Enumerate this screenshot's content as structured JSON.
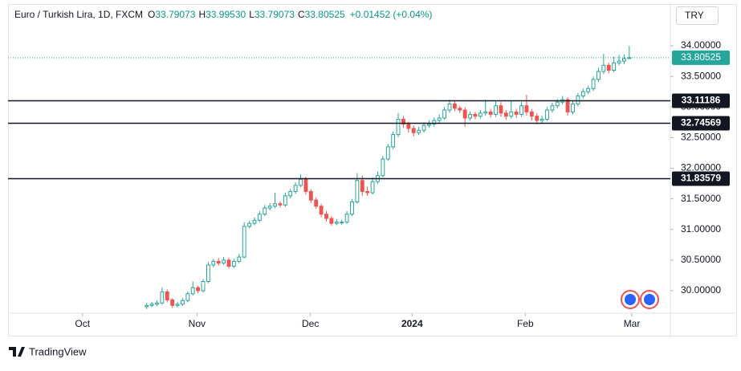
{
  "header": {
    "symbol": "Euro / Turkish Lira, 1D, FXCM",
    "o_label": "O",
    "o": "33.79073",
    "h_label": "H",
    "h": "33.99530",
    "l_label": "L",
    "l": "33.79073",
    "c_label": "C",
    "c": "33.80525",
    "change": "+0.01452 (+0.04%)",
    "currency": "TRY",
    "brand": "TradingView"
  },
  "chart_data": {
    "type": "candlestick",
    "up_color": "#26a69a",
    "down_color": "#ef5350",
    "xlim": [
      -27,
      102
    ],
    "ylim": [
      29.633,
      34.616
    ],
    "xticks": [
      {
        "value": -12.5,
        "label": "Oct"
      },
      {
        "value": 9.8,
        "label": "Nov"
      },
      {
        "value": 31.9,
        "label": "Dec"
      },
      {
        "value": 51.7,
        "label": "2024"
      },
      {
        "value": 73.75,
        "label": "Feb"
      },
      {
        "value": 94.5,
        "label": "Mar"
      }
    ],
    "yticks": [
      {
        "value": 30,
        "label": "30.00000"
      },
      {
        "value": 30.5,
        "label": "30.50000"
      },
      {
        "value": 31,
        "label": "31.00000"
      },
      {
        "value": 31.5,
        "label": "31.50000"
      },
      {
        "value": 32,
        "label": "32.00000"
      },
      {
        "value": 32.5,
        "label": "32.50000"
      },
      {
        "value": 33,
        "label": "33.00000"
      },
      {
        "value": 33.5,
        "label": "33.50000"
      },
      {
        "value": 34,
        "label": "34.00000"
      }
    ],
    "levels": [
      {
        "value": 33.11186,
        "label": "33.11186"
      },
      {
        "value": 32.74569,
        "label": "32.74569"
      },
      {
        "value": 31.83579,
        "label": "31.83579"
      }
    ],
    "last_price": {
      "value": 33.80525,
      "label": "33.80525"
    },
    "candles": [
      [
        29.74,
        29.8,
        29.7,
        29.76
      ],
      [
        29.76,
        29.82,
        29.73,
        29.78
      ],
      [
        29.78,
        29.84,
        29.75,
        29.8
      ],
      [
        29.8,
        30.05,
        29.77,
        29.98
      ],
      [
        29.98,
        30.02,
        29.81,
        29.85
      ],
      [
        29.85,
        29.88,
        29.72,
        29.76
      ],
      [
        29.76,
        29.82,
        29.73,
        29.78
      ],
      [
        29.78,
        29.88,
        29.75,
        29.84
      ],
      [
        29.84,
        29.99,
        29.81,
        29.95
      ],
      [
        29.95,
        30.15,
        29.92,
        30.05
      ],
      [
        30.05,
        30.08,
        29.96,
        30.0
      ],
      [
        30.0,
        30.19,
        29.97,
        30.15
      ],
      [
        30.15,
        30.47,
        30.12,
        30.42
      ],
      [
        30.42,
        30.52,
        30.38,
        30.48
      ],
      [
        30.48,
        30.53,
        30.41,
        30.45
      ],
      [
        30.45,
        30.55,
        30.42,
        30.5
      ],
      [
        30.5,
        30.54,
        30.36,
        30.4
      ],
      [
        30.4,
        30.52,
        30.37,
        30.48
      ],
      [
        30.48,
        30.6,
        30.45,
        30.55
      ],
      [
        30.55,
        31.12,
        30.53,
        31.05
      ],
      [
        31.05,
        31.14,
        31.02,
        31.1
      ],
      [
        31.1,
        31.2,
        31.07,
        31.15
      ],
      [
        31.15,
        31.3,
        31.12,
        31.25
      ],
      [
        31.25,
        31.4,
        31.22,
        31.35
      ],
      [
        31.35,
        31.43,
        31.31,
        31.38
      ],
      [
        31.38,
        31.6,
        31.35,
        31.42
      ],
      [
        31.42,
        31.46,
        31.36,
        31.4
      ],
      [
        31.4,
        31.6,
        31.37,
        31.55
      ],
      [
        31.55,
        31.66,
        31.51,
        31.62
      ],
      [
        31.62,
        31.77,
        31.58,
        31.72
      ],
      [
        31.72,
        31.9,
        31.69,
        31.82
      ],
      [
        31.82,
        31.86,
        31.57,
        31.62
      ],
      [
        31.62,
        31.66,
        31.43,
        31.48
      ],
      [
        31.48,
        31.52,
        31.34,
        31.38
      ],
      [
        31.38,
        31.42,
        31.2,
        31.25
      ],
      [
        31.25,
        31.3,
        31.13,
        31.18
      ],
      [
        31.18,
        31.22,
        31.06,
        31.1
      ],
      [
        31.1,
        31.17,
        31.07,
        31.12
      ],
      [
        31.12,
        31.16,
        31.08,
        31.12
      ],
      [
        31.12,
        31.3,
        31.09,
        31.25
      ],
      [
        31.25,
        31.5,
        31.22,
        31.45
      ],
      [
        31.45,
        31.92,
        31.42,
        31.8
      ],
      [
        31.8,
        31.88,
        31.55,
        31.62
      ],
      [
        31.62,
        31.7,
        31.55,
        31.6
      ],
      [
        31.6,
        31.85,
        31.57,
        31.78
      ],
      [
        31.78,
        31.95,
        31.74,
        31.88
      ],
      [
        31.88,
        32.2,
        31.85,
        32.15
      ],
      [
        32.15,
        32.4,
        32.12,
        32.35
      ],
      [
        32.35,
        32.6,
        32.31,
        32.55
      ],
      [
        32.55,
        32.9,
        32.51,
        32.8
      ],
      [
        32.8,
        32.85,
        32.66,
        32.72
      ],
      [
        32.72,
        32.76,
        32.58,
        32.65
      ],
      [
        32.65,
        32.7,
        32.52,
        32.58
      ],
      [
        32.58,
        32.68,
        32.54,
        32.62
      ],
      [
        32.62,
        32.75,
        32.58,
        32.7
      ],
      [
        32.7,
        32.78,
        32.66,
        32.72
      ],
      [
        32.72,
        32.83,
        32.68,
        32.78
      ],
      [
        32.78,
        32.88,
        32.74,
        32.82
      ],
      [
        32.82,
        33.0,
        32.79,
        32.95
      ],
      [
        32.95,
        33.12,
        32.91,
        33.05
      ],
      [
        33.05,
        33.1,
        32.93,
        32.98
      ],
      [
        32.98,
        33.02,
        32.9,
        32.95
      ],
      [
        32.95,
        33.0,
        32.68,
        32.82
      ],
      [
        32.82,
        32.93,
        32.78,
        32.88
      ],
      [
        32.88,
        32.92,
        32.8,
        32.85
      ],
      [
        32.85,
        32.95,
        32.81,
        32.9
      ],
      [
        32.9,
        33.12,
        32.86,
        32.92
      ],
      [
        32.92,
        32.97,
        32.83,
        32.88
      ],
      [
        32.88,
        33.1,
        32.84,
        33.02
      ],
      [
        33.02,
        33.08,
        32.84,
        32.9
      ],
      [
        32.9,
        32.95,
        32.79,
        32.85
      ],
      [
        32.85,
        33.1,
        32.81,
        32.92
      ],
      [
        32.92,
        32.97,
        32.82,
        32.88
      ],
      [
        32.88,
        33.08,
        32.84,
        33.02
      ],
      [
        33.02,
        33.2,
        32.86,
        32.92
      ],
      [
        32.92,
        32.97,
        32.78,
        32.85
      ],
      [
        32.85,
        32.9,
        32.72,
        32.78
      ],
      [
        32.78,
        32.86,
        32.74,
        32.8
      ],
      [
        32.8,
        33.0,
        32.77,
        32.95
      ],
      [
        32.95,
        33.07,
        32.91,
        33.02
      ],
      [
        33.02,
        33.13,
        32.98,
        33.08
      ],
      [
        33.08,
        33.18,
        33.04,
        33.12
      ],
      [
        33.12,
        33.16,
        32.86,
        32.92
      ],
      [
        32.92,
        33.1,
        32.88,
        33.05
      ],
      [
        33.05,
        33.23,
        33.01,
        33.18
      ],
      [
        33.18,
        33.3,
        33.14,
        33.25
      ],
      [
        33.25,
        33.35,
        33.21,
        33.3
      ],
      [
        33.3,
        33.5,
        33.26,
        33.45
      ],
      [
        33.45,
        33.64,
        33.41,
        33.58
      ],
      [
        33.58,
        33.87,
        33.54,
        33.68
      ],
      [
        33.68,
        33.72,
        33.55,
        33.6
      ],
      [
        33.6,
        33.82,
        33.57,
        33.72
      ],
      [
        33.72,
        33.85,
        33.68,
        33.75
      ],
      [
        33.75,
        33.86,
        33.7,
        33.79073
      ],
      [
        33.79073,
        33.9953,
        33.79073,
        33.80525
      ]
    ]
  }
}
